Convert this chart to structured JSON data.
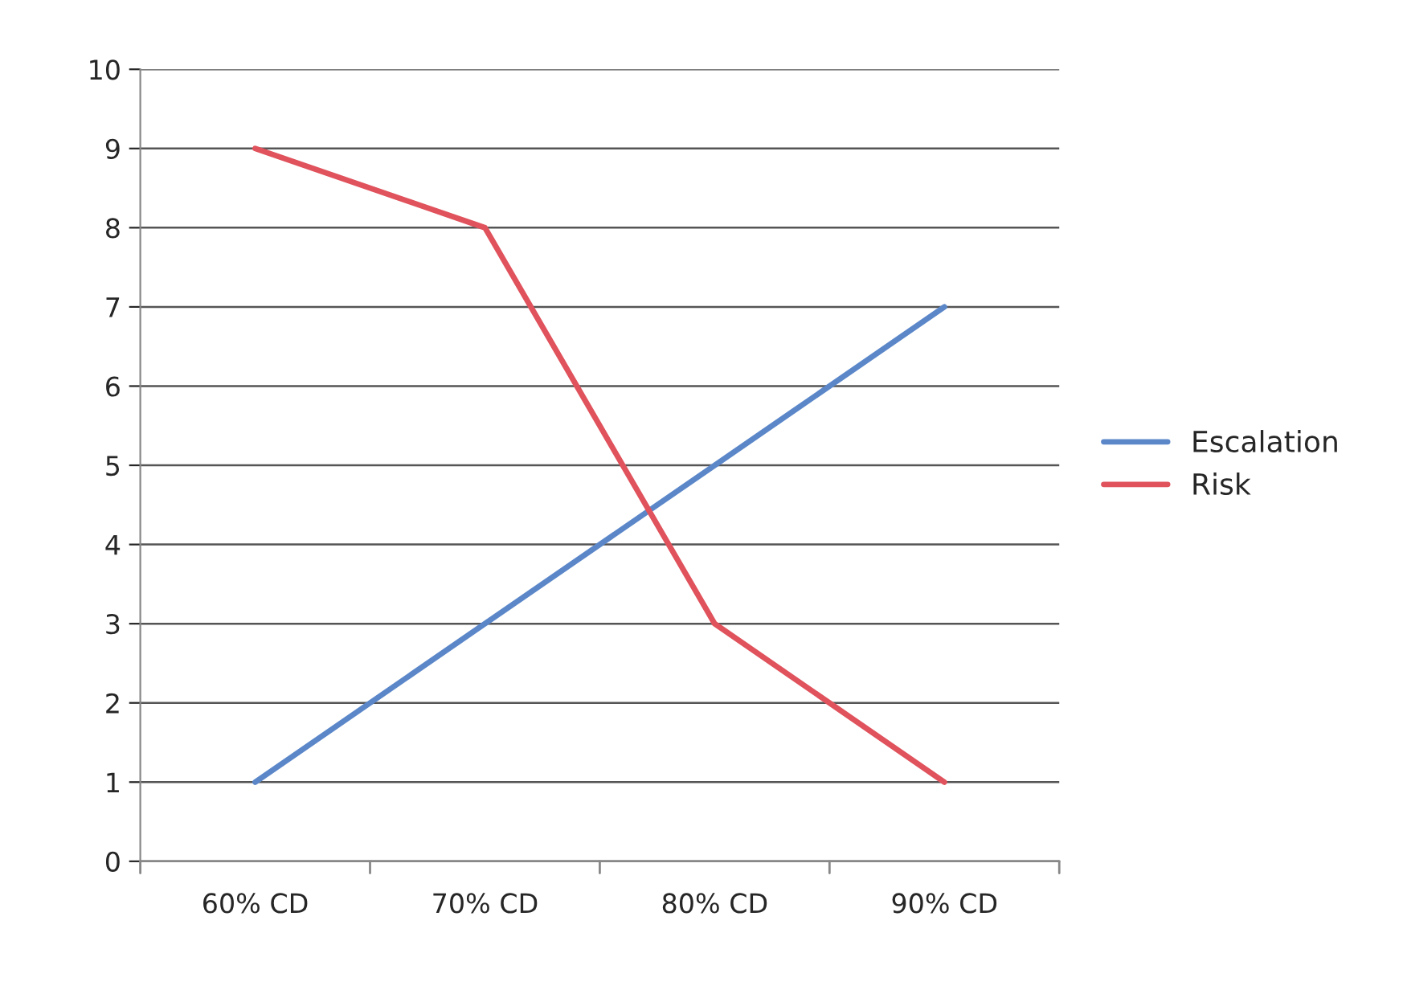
{
  "chart_data": {
    "type": "line",
    "categories": [
      "60% CD",
      "70% CD",
      "80% CD",
      "90% CD"
    ],
    "series": [
      {
        "name": "Escalation",
        "color": "#5b87c9",
        "values": [
          1,
          3,
          5,
          7
        ]
      },
      {
        "name": "Risk",
        "color": "#e0525c",
        "values": [
          9,
          8,
          3,
          1
        ]
      }
    ],
    "ylim": [
      0,
      10
    ],
    "yticks": [
      0,
      1,
      2,
      3,
      4,
      5,
      6,
      7,
      8,
      9,
      10
    ],
    "grid": "y",
    "legend": "right",
    "marker": "none",
    "line_style": "solid"
  }
}
